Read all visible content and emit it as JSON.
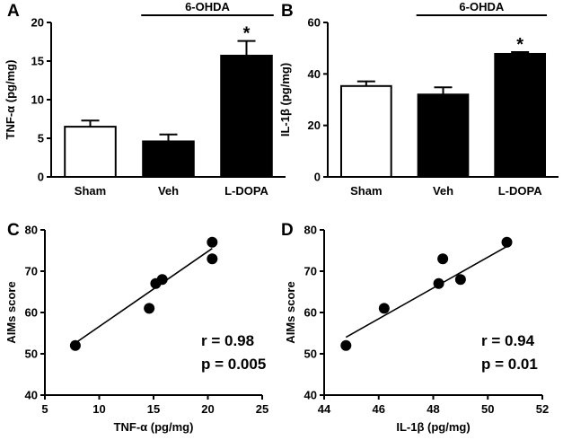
{
  "chart_data": [
    {
      "panel": "A",
      "type": "bar",
      "categories": [
        "Sham",
        "Veh",
        "L-DOPA"
      ],
      "values": [
        6.5,
        4.6,
        15.7
      ],
      "errors": [
        0.8,
        0.9,
        1.9
      ],
      "bar_colors": [
        "#ffffff",
        "#000000",
        "#000000"
      ],
      "ylabel": "TNF-α (pg/mg)",
      "ylim": [
        0,
        20
      ],
      "yticks": [
        0,
        5,
        10,
        15,
        20
      ],
      "group_label": "6-OHDA",
      "group_span": [
        "Veh",
        "L-DOPA"
      ],
      "significance": [
        {
          "category": "L-DOPA",
          "mark": "*"
        }
      ]
    },
    {
      "panel": "B",
      "type": "bar",
      "categories": [
        "Sham",
        "Veh",
        "L-DOPA"
      ],
      "values": [
        35.3,
        32.0,
        47.8
      ],
      "errors": [
        1.8,
        2.8,
        0.7
      ],
      "bar_colors": [
        "#ffffff",
        "#000000",
        "#000000"
      ],
      "ylabel": "IL-1β (pg/mg)",
      "ylim": [
        0,
        60
      ],
      "yticks": [
        0,
        20,
        40,
        60
      ],
      "group_label": "6-OHDA",
      "group_span": [
        "Veh",
        "L-DOPA"
      ],
      "significance": [
        {
          "category": "L-DOPA",
          "mark": "*"
        }
      ]
    },
    {
      "panel": "C",
      "type": "scatter",
      "points": [
        [
          7.8,
          52
        ],
        [
          14.6,
          61
        ],
        [
          15.2,
          67
        ],
        [
          15.8,
          68
        ],
        [
          20.4,
          77
        ],
        [
          20.4,
          73
        ]
      ],
      "fit_line": [
        [
          7.8,
          52.6
        ],
        [
          20.4,
          75.5
        ]
      ],
      "xlabel": "TNF-α (pg/mg)",
      "ylabel": "AIMs score",
      "xlim": [
        5,
        25
      ],
      "ylim": [
        40,
        80
      ],
      "xticks": [
        5,
        10,
        15,
        20,
        25
      ],
      "yticks": [
        40,
        50,
        60,
        70,
        80
      ],
      "stats": [
        "r = 0.98",
        "p = 0.005"
      ]
    },
    {
      "panel": "D",
      "type": "scatter",
      "points": [
        [
          44.8,
          52
        ],
        [
          46.2,
          61
        ],
        [
          48.2,
          67
        ],
        [
          48.35,
          73
        ],
        [
          49.0,
          68
        ],
        [
          50.7,
          77
        ]
      ],
      "fit_line": [
        [
          44.8,
          54.0
        ],
        [
          50.7,
          76.0
        ]
      ],
      "xlabel": "IL-1β (pg/mg)",
      "ylabel": "AIMs score",
      "xlim": [
        44,
        52
      ],
      "ylim": [
        40,
        80
      ],
      "xticks": [
        44,
        46,
        48,
        50,
        52
      ],
      "yticks": [
        40,
        50,
        60,
        70,
        80
      ],
      "stats": [
        "r = 0.94",
        "p = 0.01"
      ]
    }
  ]
}
